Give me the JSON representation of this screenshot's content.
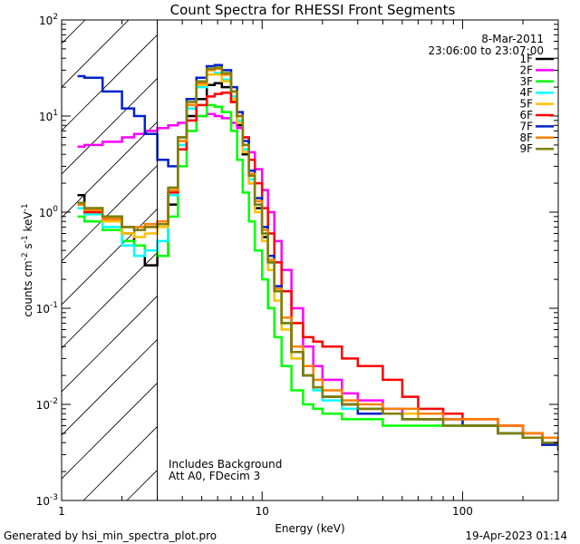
{
  "chart_data": {
    "type": "line",
    "title": "Count Spectra for RHESSI Front Segments",
    "xlabel": "Energy (keV)",
    "ylabel": "counts cm",
    "ylabel_exp1": "-2",
    "ylabel_mid": " s",
    "ylabel_exp2": "-1",
    "ylabel_mid2": " keV",
    "ylabel_exp3": "-1",
    "x_scale": "log",
    "y_scale": "log",
    "xlim": [
      1,
      300
    ],
    "ylim": [
      0.001,
      100
    ],
    "x_ticks": [
      {
        "value": 1,
        "label": "1"
      },
      {
        "value": 10,
        "label": "10"
      },
      {
        "value": 100,
        "label": "100"
      }
    ],
    "y_ticks": [
      {
        "value": 0.001,
        "base": "10",
        "exp": "-3"
      },
      {
        "value": 0.01,
        "base": "10",
        "exp": "-2"
      },
      {
        "value": 0.1,
        "base": "10",
        "exp": "-1"
      },
      {
        "value": 1,
        "base": "10",
        "exp": "0"
      },
      {
        "value": 10,
        "base": "10",
        "exp": "1"
      },
      {
        "value": 100,
        "base": "10",
        "exp": "2"
      }
    ],
    "hatched_region_max_energy": 3,
    "date": "8-Mar-2011",
    "time_range": "23:06:00 to 23:07:00",
    "annotation_line1": "Includes Background",
    "annotation_line2": "Att A0, FDecim 3",
    "footer_left": "Generated by hsi_min_spectra_plot.pro",
    "footer_right": "19-Apr-2023 01:14",
    "series": [
      {
        "name": "1F",
        "color": "#000000",
        "x": [
          1.2,
          1.3,
          1.6,
          2.0,
          2.3,
          2.6,
          3.0,
          3.4,
          3.8,
          4.2,
          4.7,
          5.3,
          5.8,
          6.3,
          7,
          7.5,
          8,
          8.6,
          9.2,
          10,
          10.7,
          11.5,
          12.5,
          14,
          16,
          18,
          20,
          25,
          30,
          40,
          50,
          60,
          80,
          100,
          150,
          200,
          250,
          300
        ],
        "values": [
          1.5,
          1.1,
          0.9,
          0.6,
          0.45,
          0.28,
          0.35,
          1.2,
          4.5,
          10,
          15,
          21,
          22,
          20,
          14,
          8,
          4,
          2,
          1.1,
          0.55,
          0.3,
          0.15,
          0.07,
          0.035,
          0.02,
          0.015,
          0.012,
          0.01,
          0.009,
          0.008,
          0.008,
          0.007,
          0.007,
          0.006,
          0.005,
          0.0045,
          0.0038,
          0.0035
        ]
      },
      {
        "name": "2F",
        "color": "#ff00ff",
        "x": [
          1.2,
          1.3,
          1.6,
          2.0,
          2.3,
          2.6,
          3.0,
          3.4,
          3.8,
          4.2,
          4.7,
          5.3,
          5.8,
          6.3,
          7,
          7.5,
          8,
          8.6,
          9.2,
          10,
          10.7,
          11.5,
          12.5,
          14,
          16,
          18,
          20,
          25,
          30,
          40,
          50,
          60,
          80,
          100,
          150,
          200,
          250,
          300
        ],
        "values": [
          4.8,
          5,
          5.4,
          6,
          6.5,
          7,
          7.5,
          8,
          8.5,
          9,
          10,
          10.5,
          10,
          9.5,
          8.5,
          7.5,
          6,
          4.2,
          2.8,
          1.7,
          1,
          0.5,
          0.25,
          0.1,
          0.04,
          0.025,
          0.018,
          0.013,
          0.011,
          0.009,
          0.008,
          0.008,
          0.007,
          0.007,
          0.006,
          0.005,
          0.0045,
          0.004
        ]
      },
      {
        "name": "3F",
        "color": "#00ff00",
        "x": [
          1.2,
          1.3,
          1.6,
          2.0,
          2.3,
          2.6,
          3.0,
          3.4,
          3.8,
          4.2,
          4.7,
          5.3,
          5.8,
          6.3,
          7,
          7.5,
          8,
          8.6,
          9.2,
          10,
          10.7,
          11.5,
          12.5,
          14,
          16,
          18,
          20,
          25,
          30,
          40,
          50,
          60,
          80,
          100,
          150,
          200,
          250,
          300
        ],
        "values": [
          0.9,
          0.8,
          0.65,
          0.5,
          0.45,
          0.4,
          0.35,
          0.9,
          3,
          7,
          10,
          13,
          12.5,
          11,
          7,
          3.5,
          1.6,
          0.8,
          0.4,
          0.2,
          0.1,
          0.05,
          0.025,
          0.014,
          0.01,
          0.009,
          0.008,
          0.007,
          0.007,
          0.006,
          0.006,
          0.006,
          0.006,
          0.006,
          0.005,
          0.0045,
          0.004,
          0.0035
        ]
      },
      {
        "name": "4F",
        "color": "#00ffff",
        "x": [
          1.2,
          1.3,
          1.6,
          2.0,
          2.3,
          2.6,
          3.0,
          3.4,
          3.8,
          4.2,
          4.7,
          5.3,
          5.8,
          6.3,
          7,
          7.5,
          8,
          8.6,
          9.2,
          10,
          10.7,
          11.5,
          12.5,
          14,
          16,
          18,
          20,
          25,
          30,
          40,
          50,
          60,
          80,
          100,
          150,
          200,
          250,
          300
        ],
        "values": [
          1.1,
          0.95,
          0.7,
          0.45,
          0.35,
          0.4,
          0.5,
          1.5,
          5,
          12,
          20,
          27,
          28,
          24,
          16,
          9,
          4.5,
          2.2,
          1.2,
          0.6,
          0.3,
          0.15,
          0.07,
          0.03,
          0.02,
          0.014,
          0.011,
          0.009,
          0.008,
          0.008,
          0.007,
          0.007,
          0.006,
          0.006,
          0.005,
          0.0045,
          0.004,
          0.0035
        ]
      },
      {
        "name": "5F",
        "color": "#ffc000",
        "x": [
          1.2,
          1.3,
          1.6,
          2.0,
          2.3,
          2.6,
          3.0,
          3.4,
          3.8,
          4.2,
          4.7,
          5.3,
          5.8,
          6.3,
          7,
          7.5,
          8,
          8.6,
          9.2,
          10,
          10.7,
          11.5,
          12.5,
          14,
          16,
          18,
          20,
          25,
          30,
          40,
          50,
          60,
          80,
          100,
          150,
          200,
          250,
          300
        ],
        "values": [
          1.2,
          1,
          0.8,
          0.6,
          0.55,
          0.6,
          0.7,
          1.6,
          5.5,
          13,
          21,
          27,
          27,
          23,
          15,
          8.5,
          4.2,
          2,
          1,
          0.5,
          0.25,
          0.12,
          0.06,
          0.03,
          0.02,
          0.015,
          0.012,
          0.01,
          0.009,
          0.008,
          0.008,
          0.007,
          0.007,
          0.006,
          0.005,
          0.0045,
          0.004,
          0.0035
        ]
      },
      {
        "name": "6F",
        "color": "#ff0000",
        "x": [
          1.2,
          1.3,
          1.6,
          2.0,
          2.3,
          2.6,
          3.0,
          3.4,
          3.8,
          4.2,
          4.7,
          5.3,
          5.8,
          6.3,
          7,
          7.5,
          8,
          8.6,
          9.2,
          10,
          10.7,
          11.5,
          12.5,
          14,
          16,
          18,
          20,
          25,
          30,
          40,
          50,
          60,
          80,
          100,
          150,
          200,
          250,
          300
        ],
        "values": [
          1.2,
          1,
          0.85,
          0.7,
          0.65,
          0.7,
          0.8,
          1.6,
          4.5,
          9,
          13,
          16,
          17,
          17.5,
          14,
          10,
          6,
          3.5,
          2,
          1.1,
          0.6,
          0.3,
          0.15,
          0.07,
          0.05,
          0.045,
          0.04,
          0.03,
          0.025,
          0.018,
          0.012,
          0.009,
          0.008,
          0.007,
          0.006,
          0.005,
          0.0045,
          0.004
        ]
      },
      {
        "name": "7F",
        "color": "#0022cc",
        "x": [
          1.2,
          1.3,
          1.6,
          2.0,
          2.3,
          2.6,
          3.0,
          3.4,
          3.8,
          4.2,
          4.7,
          5.3,
          5.8,
          6.3,
          7,
          7.5,
          8,
          8.6,
          9.2,
          10,
          10.7,
          11.5,
          12.5,
          14,
          16,
          18,
          20,
          25,
          30,
          40,
          50,
          60,
          80,
          100,
          150,
          200,
          250,
          300
        ],
        "values": [
          26,
          25,
          18,
          12,
          10,
          6.5,
          3.5,
          3,
          6,
          15,
          25,
          33,
          34,
          30,
          20,
          11,
          5.5,
          2.7,
          1.4,
          0.7,
          0.35,
          0.17,
          0.08,
          0.035,
          0.02,
          0.015,
          0.012,
          0.01,
          0.008,
          0.008,
          0.007,
          0.007,
          0.007,
          0.006,
          0.005,
          0.0045,
          0.0038,
          0.0033
        ]
      },
      {
        "name": "8F",
        "color": "#ff8000",
        "x": [
          1.2,
          1.3,
          1.6,
          2.0,
          2.3,
          2.6,
          3.0,
          3.4,
          3.8,
          4.2,
          4.7,
          5.3,
          5.8,
          6.3,
          7,
          7.5,
          8,
          8.6,
          9.2,
          10,
          10.7,
          11.5,
          12.5,
          14,
          16,
          18,
          20,
          25,
          30,
          40,
          50,
          60,
          80,
          100,
          150,
          200,
          250,
          300
        ],
        "values": [
          1.2,
          1.05,
          0.85,
          0.7,
          0.7,
          0.75,
          0.8,
          1.7,
          5.5,
          13,
          22,
          30,
          31,
          27,
          18,
          10,
          5,
          2.5,
          1.3,
          0.65,
          0.32,
          0.16,
          0.08,
          0.04,
          0.025,
          0.018,
          0.014,
          0.011,
          0.01,
          0.009,
          0.009,
          0.008,
          0.007,
          0.007,
          0.006,
          0.005,
          0.0045,
          0.004
        ]
      },
      {
        "name": "9F",
        "color": "#7f7f00",
        "x": [
          1.2,
          1.3,
          1.6,
          2.0,
          2.3,
          2.6,
          3.0,
          3.4,
          3.8,
          4.2,
          4.7,
          5.3,
          5.8,
          6.3,
          7,
          7.5,
          8,
          8.6,
          9.2,
          10,
          10.7,
          11.5,
          12.5,
          14,
          16,
          18,
          20,
          25,
          30,
          40,
          50,
          60,
          80,
          100,
          150,
          200,
          250,
          300
        ],
        "values": [
          1.25,
          1.1,
          0.9,
          0.7,
          0.65,
          0.7,
          0.75,
          1.8,
          6,
          14,
          23,
          31,
          32,
          28,
          18,
          10,
          5,
          2.4,
          1.2,
          0.6,
          0.3,
          0.15,
          0.07,
          0.035,
          0.02,
          0.015,
          0.012,
          0.01,
          0.009,
          0.008,
          0.007,
          0.007,
          0.006,
          0.006,
          0.005,
          0.0045,
          0.004,
          0.0035
        ]
      }
    ]
  }
}
